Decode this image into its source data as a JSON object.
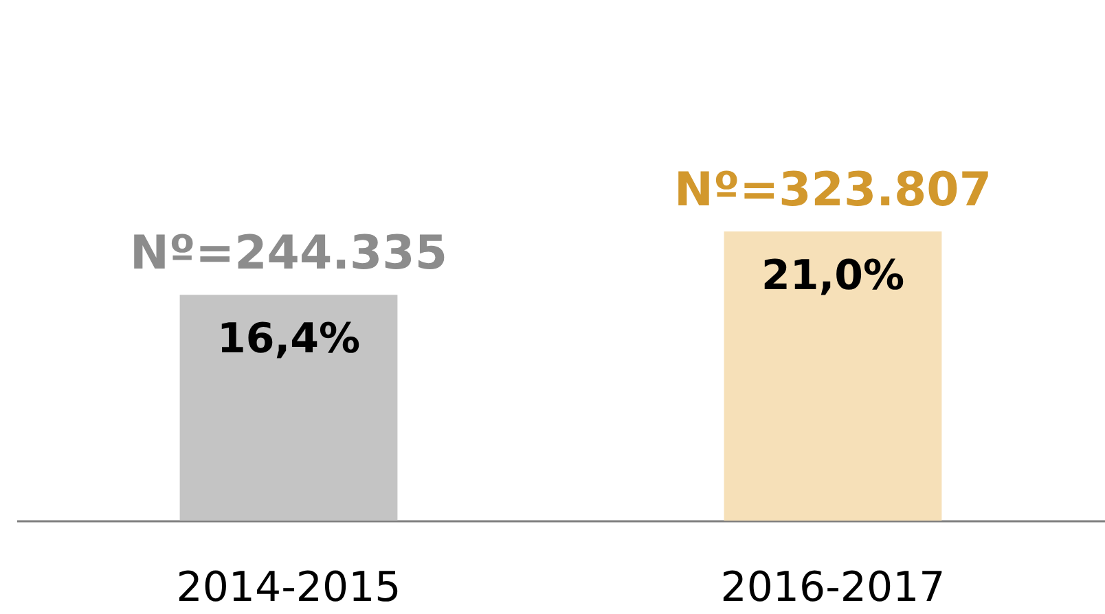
{
  "chart_data": {
    "type": "bar",
    "categories": [
      "2014-2015",
      "2016-2017"
    ],
    "values": [
      16.4,
      21.0
    ],
    "colors": [
      "#c4c4c4",
      "#f6e0b8"
    ],
    "value_labels": [
      "16,4%",
      "21,0%"
    ],
    "annotations": [
      {
        "text": "Nº=244.335",
        "x": "2014-2015",
        "y": 16.4
      },
      {
        "text": "Nº=323.807",
        "x": "2016-2017",
        "y": 21.0
      }
    ],
    "grid": false
  }
}
